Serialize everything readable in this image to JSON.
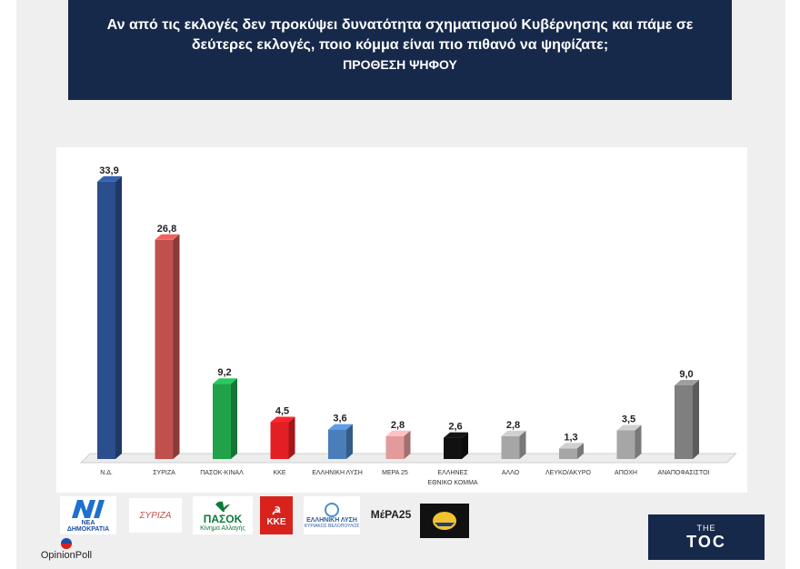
{
  "header": {
    "question_line1": "Αν από τις εκλογές δεν προκύψει δυνατότητα σχηματισμού Κυβέρνησης και πάμε σε",
    "question_line2": "δεύτερες εκλογές, ποιο κόμμα είναι πιο πιθανό να ψηφίζατε;",
    "subtitle": "ΠΡΟΘΕΣΗ ΨΗΦΟΥ"
  },
  "chart_data": {
    "type": "bar",
    "title": "",
    "xlabel": "",
    "ylabel": "",
    "ylim": [
      0,
      35
    ],
    "grid": false,
    "legend": "none",
    "categories": [
      "Ν.Δ.",
      "ΣΥΡΙΖΑ",
      "ΠΑΣΟΚ-ΚΙΝΑΛ",
      "ΚΚΕ",
      "ΕΛΛΗΝΙΚΗ ΛΥΣΗ",
      "ΜΕΡΑ 25",
      "ΕΛΛΗΝΕΣ ΕΘΝΙΚΟ ΚΟΜΜΑ",
      "ΑΛΛΟ",
      "ΛΕΥΚΟ/ΑΚΥΡΟ",
      "ΑΠΟΧΗ",
      "ΑΝΑΠΟΦΑΣΙΣΤΟΙ"
    ],
    "category_lines": [
      [
        "Ν.Δ."
      ],
      [
        "ΣΥΡΙΖΑ"
      ],
      [
        "ΠΑΣΟΚ-ΚΙΝΑΛ"
      ],
      [
        "ΚΚΕ"
      ],
      [
        "ΕΛΛΗΝΙΚΗ ΛΥΣΗ"
      ],
      [
        "ΜΕΡΑ 25"
      ],
      [
        "ΕΛΛΗΝΕΣ",
        "ΕΘΝΙΚΟ ΚΟΜΜΑ"
      ],
      [
        "ΑΛΛΟ"
      ],
      [
        "ΛΕΥΚΟ/ΑΚΥΡΟ"
      ],
      [
        "ΑΠΟΧΗ"
      ],
      [
        "ΑΝΑΠΟΦΑΣΙΣΤΟΙ"
      ]
    ],
    "values": [
      33.9,
      26.8,
      9.2,
      4.5,
      3.6,
      2.8,
      2.6,
      2.8,
      1.3,
      3.5,
      9.0
    ],
    "value_labels": [
      "33,9",
      "26,8",
      "9,2",
      "4,5",
      "3,6",
      "2,8",
      "2,6",
      "2,8",
      "1,3",
      "3,5",
      "9,0"
    ],
    "colors": [
      "#2b4e8c",
      "#c0504d",
      "#1fa24a",
      "#e31e24",
      "#4a7ebb",
      "#e39a9a",
      "#111111",
      "#a6a6a6",
      "#a6a6a6",
      "#a6a6a6",
      "#7f7f7f"
    ]
  },
  "logos": {
    "nd_text": "ΝΕΑ ΔΗΜΟΚΡΑΤΙΑ",
    "syriza_text": "ΣΥΡΙΖΑ",
    "pasok_text": "ΠΑΣΟΚ",
    "pasok_sub": "Κίνημα Αλλαγής",
    "kke_text": "ΚΚΕ",
    "lysi_text": "ΕΛΛΗΝΙΚΗ ΛΥΣΗ",
    "lysi_sub": "ΚΥΡΙΑΚΟΣ ΒΕΛΟΠΟΥΛΟΣ",
    "mera_text": "ΜέΡΑ25",
    "opinion_poll": "OpinionPoll",
    "toc_top": "THE",
    "toc_main": "TOC"
  }
}
